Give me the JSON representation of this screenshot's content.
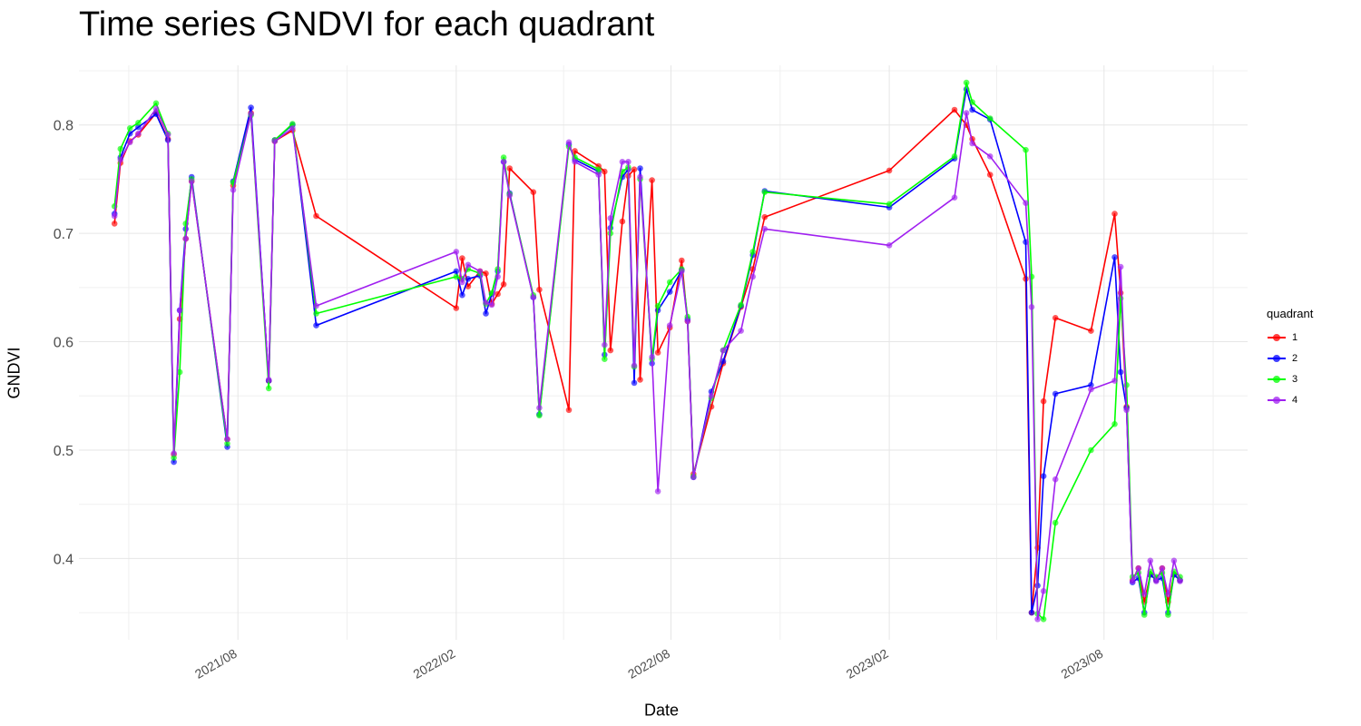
{
  "chart_data": {
    "type": "line",
    "title": "Time series GNDVI for each quadrant",
    "xlabel": "Date",
    "ylabel": "GNDVI",
    "ylim": [
      0.325,
      0.855
    ],
    "xlim": [
      "2021-03-20",
      "2023-11-30"
    ],
    "y_ticks": [
      0.4,
      0.5,
      0.6,
      0.7,
      0.8
    ],
    "y_tick_labels": [
      "0.4",
      "0.5",
      "0.6",
      "0.7",
      "0.8"
    ],
    "x_ticks": [
      "2021-08-01",
      "2022-02-01",
      "2022-08-01",
      "2023-02-01",
      "2023-08-01"
    ],
    "x_tick_labels": [
      "2021/08",
      "2022/02",
      "2022/08",
      "2023/02",
      "2023/08"
    ],
    "grid": true,
    "legend": {
      "title": "quadrant",
      "placement": "right"
    },
    "series": [
      {
        "name": "1",
        "color": "#ff0000",
        "x": [
          "2021-04-19",
          "2021-04-24",
          "2021-05-02",
          "2021-05-09",
          "2021-05-24",
          "2021-06-03",
          "2021-06-08",
          "2021-06-13",
          "2021-06-18",
          "2021-06-23",
          "2021-07-23",
          "2021-07-28",
          "2021-08-12",
          "2021-08-27",
          "2021-09-01",
          "2021-09-16",
          "2021-10-06",
          "2022-02-01",
          "2022-02-06",
          "2022-02-11",
          "2022-02-21",
          "2022-02-26",
          "2022-03-03",
          "2022-03-08",
          "2022-03-13",
          "2022-03-18",
          "2022-04-07",
          "2022-04-12",
          "2022-05-07",
          "2022-05-12",
          "2022-06-01",
          "2022-06-06",
          "2022-06-11",
          "2022-06-21",
          "2022-06-26",
          "2022-07-01",
          "2022-07-06",
          "2022-07-16",
          "2022-07-21",
          "2022-07-31",
          "2022-08-10",
          "2022-08-15",
          "2022-08-20",
          "2022-09-04",
          "2022-09-14",
          "2022-09-29",
          "2022-10-09",
          "2022-10-19",
          "2023-02-01",
          "2023-03-28",
          "2023-04-07",
          "2023-04-12",
          "2023-04-27",
          "2023-05-27",
          "2023-06-01",
          "2023-06-06",
          "2023-06-11",
          "2023-06-21",
          "2023-07-21",
          "2023-08-10",
          "2023-08-15",
          "2023-08-20",
          "2023-08-25",
          "2023-08-30",
          "2023-09-04",
          "2023-09-09",
          "2023-09-14",
          "2023-09-19",
          "2023-09-24",
          "2023-09-29",
          "2023-10-04"
        ],
        "y": [
          0.709,
          0.765,
          0.785,
          0.791,
          0.811,
          0.787,
          0.496,
          0.621,
          0.695,
          0.748,
          0.51,
          0.744,
          0.811,
          0.564,
          0.785,
          0.795,
          0.716,
          0.631,
          0.677,
          0.651,
          0.665,
          0.663,
          0.635,
          0.644,
          0.653,
          0.76,
          0.738,
          0.648,
          0.537,
          0.776,
          0.762,
          0.757,
          0.592,
          0.711,
          0.753,
          0.759,
          0.565,
          0.749,
          0.59,
          0.613,
          0.675,
          0.619,
          0.478,
          0.54,
          0.58,
          0.632,
          0.667,
          0.715,
          0.758,
          0.814,
          0.8,
          0.787,
          0.754,
          0.658,
          0.35,
          0.41,
          0.545,
          0.622,
          0.61,
          0.718,
          0.645,
          0.54,
          0.38,
          0.391,
          0.36,
          0.385,
          0.38,
          0.391,
          0.36,
          0.385,
          0.38
        ]
      },
      {
        "name": "2",
        "color": "#0000ff",
        "x": [
          "2021-04-19",
          "2021-04-24",
          "2021-05-02",
          "2021-05-09",
          "2021-05-24",
          "2021-06-03",
          "2021-06-08",
          "2021-06-13",
          "2021-06-18",
          "2021-06-23",
          "2021-07-23",
          "2021-07-28",
          "2021-08-12",
          "2021-08-27",
          "2021-09-01",
          "2021-09-16",
          "2021-10-06",
          "2022-02-01",
          "2022-02-06",
          "2022-02-11",
          "2022-02-21",
          "2022-02-26",
          "2022-03-03",
          "2022-03-08",
          "2022-03-13",
          "2022-03-18",
          "2022-04-07",
          "2022-04-12",
          "2022-05-07",
          "2022-05-12",
          "2022-06-01",
          "2022-06-06",
          "2022-06-11",
          "2022-06-21",
          "2022-06-26",
          "2022-07-01",
          "2022-07-06",
          "2022-07-16",
          "2022-07-21",
          "2022-07-31",
          "2022-08-10",
          "2022-08-15",
          "2022-08-20",
          "2022-09-04",
          "2022-09-14",
          "2022-09-29",
          "2022-10-09",
          "2022-10-19",
          "2023-02-01",
          "2023-03-28",
          "2023-04-07",
          "2023-04-12",
          "2023-04-27",
          "2023-05-27",
          "2023-06-01",
          "2023-06-06",
          "2023-06-11",
          "2023-06-21",
          "2023-07-21",
          "2023-08-10",
          "2023-08-15",
          "2023-08-20",
          "2023-08-25",
          "2023-08-30",
          "2023-09-04",
          "2023-09-09",
          "2023-09-14",
          "2023-09-19",
          "2023-09-24",
          "2023-09-29",
          "2023-10-04"
        ],
        "y": [
          0.718,
          0.77,
          0.792,
          0.798,
          0.81,
          0.786,
          0.489,
          0.629,
          0.704,
          0.752,
          0.503,
          0.748,
          0.816,
          0.564,
          0.786,
          0.8,
          0.615,
          0.665,
          0.643,
          0.658,
          0.661,
          0.626,
          0.644,
          0.665,
          0.766,
          0.737,
          0.641,
          0.533,
          0.782,
          0.768,
          0.757,
          0.588,
          0.705,
          0.752,
          0.759,
          0.562,
          0.76,
          0.58,
          0.629,
          0.646,
          0.666,
          0.621,
          0.475,
          0.554,
          0.582,
          0.633,
          0.68,
          0.739,
          0.724,
          0.769,
          0.833,
          0.814,
          0.805,
          0.692,
          0.35,
          0.375,
          0.476,
          0.552,
          0.56,
          0.678,
          0.572,
          0.539,
          0.378,
          0.382,
          0.35,
          0.385,
          0.38,
          0.382,
          0.35,
          0.385,
          0.38
        ]
      },
      {
        "name": "3",
        "color": "#00ff00",
        "x": [
          "2021-04-19",
          "2021-04-24",
          "2021-05-02",
          "2021-05-09",
          "2021-05-24",
          "2021-06-03",
          "2021-06-08",
          "2021-06-13",
          "2021-06-18",
          "2021-06-23",
          "2021-07-23",
          "2021-07-28",
          "2021-08-12",
          "2021-08-27",
          "2021-09-01",
          "2021-09-16",
          "2021-10-06",
          "2022-02-01",
          "2022-02-06",
          "2022-02-11",
          "2022-02-21",
          "2022-02-26",
          "2022-03-03",
          "2022-03-08",
          "2022-03-13",
          "2022-03-18",
          "2022-04-07",
          "2022-04-12",
          "2022-05-07",
          "2022-05-12",
          "2022-06-01",
          "2022-06-06",
          "2022-06-11",
          "2022-06-21",
          "2022-06-26",
          "2022-07-01",
          "2022-07-06",
          "2022-07-16",
          "2022-07-21",
          "2022-07-31",
          "2022-08-10",
          "2022-08-15",
          "2022-08-20",
          "2022-09-04",
          "2022-09-14",
          "2022-09-29",
          "2022-10-09",
          "2022-10-19",
          "2023-02-01",
          "2023-03-28",
          "2023-04-07",
          "2023-04-12",
          "2023-04-27",
          "2023-05-27",
          "2023-06-01",
          "2023-06-06",
          "2023-06-11",
          "2023-06-21",
          "2023-07-21",
          "2023-08-10",
          "2023-08-15",
          "2023-08-20",
          "2023-08-25",
          "2023-08-30",
          "2023-09-04",
          "2023-09-09",
          "2023-09-14",
          "2023-09-19",
          "2023-09-24",
          "2023-09-29",
          "2023-10-04"
        ],
        "y": [
          0.725,
          0.778,
          0.797,
          0.802,
          0.82,
          0.792,
          0.493,
          0.572,
          0.709,
          0.75,
          0.506,
          0.747,
          0.809,
          0.557,
          0.786,
          0.801,
          0.626,
          0.66,
          0.658,
          0.667,
          0.663,
          0.635,
          0.645,
          0.667,
          0.77,
          0.736,
          0.643,
          0.532,
          0.78,
          0.77,
          0.759,
          0.584,
          0.7,
          0.757,
          0.761,
          0.577,
          0.75,
          0.584,
          0.633,
          0.655,
          0.667,
          0.623,
          0.476,
          0.548,
          0.592,
          0.634,
          0.683,
          0.738,
          0.727,
          0.771,
          0.839,
          0.821,
          0.806,
          0.777,
          0.66,
          0.349,
          0.344,
          0.433,
          0.5,
          0.524,
          0.64,
          0.56,
          0.383,
          0.387,
          0.348,
          0.388,
          0.383,
          0.387,
          0.348,
          0.388,
          0.383
        ]
      },
      {
        "name": "4",
        "color": "#a020f0",
        "x": [
          "2021-04-19",
          "2021-04-24",
          "2021-05-02",
          "2021-05-09",
          "2021-05-24",
          "2021-06-03",
          "2021-06-08",
          "2021-06-13",
          "2021-06-18",
          "2021-06-23",
          "2021-07-23",
          "2021-07-28",
          "2021-08-12",
          "2021-08-27",
          "2021-09-01",
          "2021-09-16",
          "2021-10-06",
          "2022-02-01",
          "2022-02-06",
          "2022-02-11",
          "2022-02-21",
          "2022-02-26",
          "2022-03-03",
          "2022-03-08",
          "2022-03-13",
          "2022-03-18",
          "2022-04-07",
          "2022-04-12",
          "2022-05-07",
          "2022-05-12",
          "2022-06-01",
          "2022-06-06",
          "2022-06-11",
          "2022-06-21",
          "2022-06-26",
          "2022-07-01",
          "2022-07-06",
          "2022-07-16",
          "2022-07-21",
          "2022-07-31",
          "2022-08-10",
          "2022-08-15",
          "2022-08-20",
          "2022-09-04",
          "2022-09-14",
          "2022-09-29",
          "2022-10-09",
          "2022-10-19",
          "2023-02-01",
          "2023-03-28",
          "2023-04-07",
          "2023-04-12",
          "2023-04-27",
          "2023-05-27",
          "2023-06-01",
          "2023-06-06",
          "2023-06-11",
          "2023-06-21",
          "2023-07-21",
          "2023-08-10",
          "2023-08-15",
          "2023-08-20",
          "2023-08-25",
          "2023-08-30",
          "2023-09-04",
          "2023-09-09",
          "2023-09-14",
          "2023-09-19",
          "2023-09-24",
          "2023-09-29",
          "2023-10-04"
        ],
        "y": [
          0.716,
          0.768,
          0.784,
          0.792,
          0.815,
          0.791,
          0.497,
          0.629,
          0.695,
          0.748,
          0.51,
          0.74,
          0.81,
          0.565,
          0.785,
          0.797,
          0.633,
          0.683,
          0.655,
          0.671,
          0.665,
          0.636,
          0.634,
          0.66,
          0.766,
          0.735,
          0.641,
          0.539,
          0.784,
          0.766,
          0.754,
          0.597,
          0.714,
          0.766,
          0.766,
          0.578,
          0.752,
          0.586,
          0.462,
          0.615,
          0.665,
          0.619,
          0.475,
          0.55,
          0.592,
          0.61,
          0.66,
          0.704,
          0.689,
          0.733,
          0.811,
          0.783,
          0.771,
          0.728,
          0.632,
          0.344,
          0.37,
          0.473,
          0.556,
          0.564,
          0.669,
          0.537,
          0.379,
          0.391,
          0.367,
          0.398,
          0.379,
          0.391,
          0.367,
          0.398,
          0.379
        ]
      }
    ]
  }
}
